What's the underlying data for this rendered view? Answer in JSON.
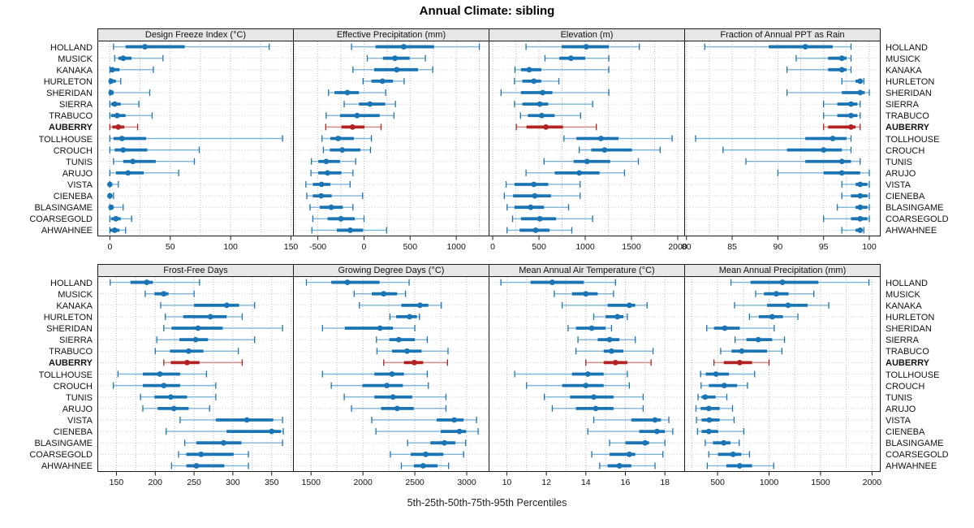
{
  "title": "Annual Climate: sibling",
  "footer": "5th-25th-50th-75th-95th Percentiles",
  "highlight_station": "AUBERRY",
  "stations": [
    "HOLLAND",
    "MUSICK",
    "KANAKA",
    "HURLETON",
    "SHERIDAN",
    "SIERRA",
    "TRABUCO",
    "AUBERRY",
    "TOLLHOUSE",
    "CROUCH",
    "TUNIS",
    "ARUJO",
    "VISTA",
    "CIENEBA",
    "BLASINGAME",
    "COARSEGOLD",
    "AHWAHNEE"
  ],
  "colors": {
    "normal": "#1b74b4",
    "normal_light": "#7fb3d7",
    "highlight": "#b22222",
    "highlight_light": "#d38b83",
    "header_bg": "#e7e7e7",
    "border": "#1a1a1a",
    "grid_vertical": "#b9b9b9",
    "grid_horizontal": "#d2d2d2",
    "tick_text": "#111111"
  },
  "percentile_labels": [
    "5th",
    "25th",
    "50th",
    "75th",
    "95th"
  ],
  "chart_data": [
    {
      "type": "dotplot",
      "title": "Design Freeze Index (°C)",
      "row": "top",
      "xlim": [
        -10,
        152
      ],
      "ticks": [
        0,
        50,
        100,
        150
      ],
      "values": [
        [
          3,
          13,
          29,
          62,
          132
        ],
        [
          4,
          7,
          11,
          18,
          44
        ],
        [
          0,
          1,
          2,
          8,
          36
        ],
        [
          0,
          0,
          1,
          5,
          9
        ],
        [
          0,
          0,
          1,
          3,
          33
        ],
        [
          0,
          1,
          4,
          9,
          24
        ],
        [
          0,
          1,
          6,
          13,
          35
        ],
        [
          0,
          2,
          7,
          12,
          23
        ],
        [
          0,
          3,
          10,
          30,
          143
        ],
        [
          0,
          4,
          11,
          31,
          74
        ],
        [
          3,
          11,
          19,
          38,
          70
        ],
        [
          0,
          5,
          15,
          28,
          57
        ],
        [
          0,
          0,
          0,
          1,
          7
        ],
        [
          0,
          0,
          0,
          1,
          3
        ],
        [
          0,
          0,
          1,
          3,
          11
        ],
        [
          0,
          1,
          5,
          9,
          18
        ],
        [
          0,
          0,
          4,
          8,
          13
        ]
      ]
    },
    {
      "type": "dotplot",
      "title": "Effective Precipitation (mm)",
      "row": "top",
      "xlim": [
        -765,
        1355
      ],
      "ticks": [
        -500,
        0,
        500,
        1000
      ],
      "values": [
        [
          -135,
          125,
          430,
          760,
          1250
        ],
        [
          35,
          205,
          335,
          495,
          665
        ],
        [
          -120,
          110,
          355,
          585,
          745
        ],
        [
          -10,
          80,
          200,
          315,
          435
        ],
        [
          -385,
          -320,
          -180,
          -55,
          235
        ],
        [
          -215,
          -55,
          65,
          230,
          340
        ],
        [
          -410,
          -260,
          -75,
          170,
          325
        ],
        [
          -415,
          -245,
          -125,
          5,
          185
        ],
        [
          -455,
          -365,
          -280,
          -110,
          80
        ],
        [
          -440,
          -370,
          -235,
          -40,
          70
        ],
        [
          -570,
          -495,
          -410,
          -260,
          -90
        ],
        [
          -575,
          -495,
          -395,
          -245,
          -120
        ],
        [
          -630,
          -555,
          -460,
          -365,
          -150
        ],
        [
          -620,
          -555,
          -465,
          -350,
          -15
        ],
        [
          -585,
          -480,
          -355,
          -230,
          -120
        ],
        [
          -555,
          -395,
          -250,
          -100,
          0
        ],
        [
          -565,
          -295,
          -150,
          -10,
          245
        ]
      ]
    },
    {
      "type": "dotplot",
      "title": "Elevation (m)",
      "row": "top",
      "xlim": [
        -40,
        2075
      ],
      "ticks": [
        0,
        500,
        1000,
        1500,
        2000
      ],
      "values": [
        [
          360,
          745,
          1010,
          1255,
          1585
        ],
        [
          565,
          720,
          845,
          1000,
          1255
        ],
        [
          240,
          305,
          395,
          525,
          1255
        ],
        [
          235,
          320,
          445,
          525,
          715
        ],
        [
          90,
          305,
          540,
          645,
          1255
        ],
        [
          235,
          320,
          510,
          600,
          1080
        ],
        [
          300,
          380,
          530,
          670,
          950
        ],
        [
          255,
          365,
          575,
          760,
          1120
        ],
        [
          770,
          905,
          1170,
          1360,
          1940
        ],
        [
          935,
          1065,
          1210,
          1505,
          1810
        ],
        [
          555,
          875,
          1020,
          1270,
          1575
        ],
        [
          360,
          670,
          935,
          1155,
          1425
        ],
        [
          145,
          235,
          445,
          600,
          945
        ],
        [
          125,
          220,
          455,
          630,
          945
        ],
        [
          155,
          235,
          410,
          555,
          820
        ],
        [
          215,
          305,
          510,
          685,
          1080
        ],
        [
          155,
          290,
          465,
          615,
          855
        ]
      ]
    },
    {
      "type": "dotplot",
      "title": "Fraction of Annual PPT as Rain",
      "row": "top",
      "xlim": [
        79.8,
        101.2
      ],
      "ticks": [
        80,
        85,
        90,
        95,
        100
      ],
      "values": [
        [
          82,
          89,
          93,
          96,
          98
        ],
        [
          92,
          95.5,
          97,
          97.5,
          98
        ],
        [
          91,
          95.5,
          97,
          97.5,
          98
        ],
        [
          97,
          98.5,
          99,
          99.2,
          99.4
        ],
        [
          91,
          97,
          99,
          99.5,
          100
        ],
        [
          95,
          96.5,
          98,
          98.7,
          99
        ],
        [
          95,
          96.5,
          98,
          98.7,
          99
        ],
        [
          95,
          95.5,
          98,
          98.5,
          99
        ],
        [
          81,
          93,
          96,
          97.5,
          98
        ],
        [
          84,
          91,
          95,
          97,
          98
        ],
        [
          86.5,
          93,
          97,
          98,
          99
        ],
        [
          90,
          95,
          97,
          99,
          100
        ],
        [
          97,
          98.5,
          99,
          99.8,
          100
        ],
        [
          97,
          98,
          99,
          99.8,
          100
        ],
        [
          96.5,
          98.5,
          99,
          99.8,
          100
        ],
        [
          95,
          98,
          99,
          99.8,
          100
        ],
        [
          97,
          98.5,
          99,
          99.1,
          99.4
        ]
      ]
    },
    {
      "type": "dotplot",
      "title": "Frost-Free Days",
      "row": "bottom",
      "xlim": [
        126,
        378
      ],
      "ticks": [
        150,
        200,
        250,
        300,
        350
      ],
      "values": [
        [
          142,
          168,
          189,
          197,
          257
        ],
        [
          187,
          199,
          211,
          217,
          250
        ],
        [
          207,
          250,
          292,
          308,
          328
        ],
        [
          213,
          236,
          271,
          292,
          312
        ],
        [
          211,
          221,
          255,
          287,
          364
        ],
        [
          202,
          231,
          252,
          268,
          328
        ],
        [
          200,
          219,
          243,
          262,
          307
        ],
        [
          211,
          220,
          241,
          257,
          312
        ],
        [
          152,
          184,
          206,
          232,
          266
        ],
        [
          146,
          184,
          211,
          232,
          278
        ],
        [
          181,
          199,
          220,
          241,
          278
        ],
        [
          184,
          203,
          224,
          243,
          270
        ],
        [
          232,
          278,
          318,
          352,
          364
        ],
        [
          214,
          292,
          350,
          362,
          365
        ],
        [
          238,
          253,
          288,
          311,
          364
        ],
        [
          230,
          240,
          259,
          301,
          320
        ],
        [
          221,
          240,
          253,
          289,
          320
        ]
      ]
    },
    {
      "type": "dotplot",
      "title": "Growing Degree Days (°C)",
      "row": "bottom",
      "xlim": [
        1330,
        3215
      ],
      "ticks": [
        1500,
        2000,
        2500,
        3000
      ],
      "values": [
        [
          1455,
          1695,
          1850,
          2160,
          2445
        ],
        [
          1915,
          2085,
          2200,
          2330,
          2410
        ],
        [
          1965,
          2370,
          2550,
          2630,
          2755
        ],
        [
          2260,
          2320,
          2450,
          2520,
          2545
        ],
        [
          1610,
          1825,
          2165,
          2290,
          2500
        ],
        [
          2130,
          2255,
          2345,
          2500,
          2620
        ],
        [
          2135,
          2280,
          2425,
          2565,
          2820
        ],
        [
          2200,
          2395,
          2495,
          2580,
          2815
        ],
        [
          1610,
          2110,
          2280,
          2395,
          2620
        ],
        [
          1695,
          1995,
          2230,
          2385,
          2630
        ],
        [
          1820,
          2110,
          2290,
          2475,
          2800
        ],
        [
          1890,
          2175,
          2330,
          2490,
          2800
        ],
        [
          2085,
          2710,
          2880,
          2970,
          3095
        ],
        [
          2125,
          2750,
          2930,
          2995,
          3110
        ],
        [
          2430,
          2650,
          2785,
          2890,
          2990
        ],
        [
          2265,
          2460,
          2605,
          2775,
          2970
        ],
        [
          2370,
          2490,
          2580,
          2720,
          2825
        ]
      ]
    },
    {
      "type": "dotplot",
      "title": "Mean Annual Air Temperature (°C)",
      "row": "bottom",
      "xlim": [
        9.1,
        19.0
      ],
      "ticks": [
        10,
        12,
        14,
        16,
        18
      ],
      "values": [
        [
          9.7,
          11.2,
          12.3,
          13.9,
          15.5
        ],
        [
          12.4,
          13.3,
          14.0,
          14.6,
          15.4
        ],
        [
          12.8,
          15.1,
          16.2,
          16.5,
          17.1
        ],
        [
          14.4,
          15.0,
          15.6,
          15.9,
          16.1
        ],
        [
          13.1,
          13.5,
          14.3,
          15.0,
          15.3
        ],
        [
          13.6,
          14.6,
          15.2,
          15.7,
          16.5
        ],
        [
          13.5,
          14.9,
          15.3,
          15.9,
          17.4
        ],
        [
          14.0,
          14.9,
          15.5,
          16.1,
          17.3
        ],
        [
          10.4,
          13.3,
          14.1,
          14.9,
          16.1
        ],
        [
          11.0,
          12.8,
          14.0,
          14.9,
          16.2
        ],
        [
          11.9,
          13.2,
          14.4,
          15.4,
          16.9
        ],
        [
          12.3,
          13.5,
          14.5,
          15.4,
          16.9
        ],
        [
          14.4,
          16.3,
          17.5,
          17.8,
          18.2
        ],
        [
          14.1,
          16.7,
          17.6,
          18.0,
          18.4
        ],
        [
          15.2,
          16.0,
          17.0,
          17.2,
          18.0
        ],
        [
          14.3,
          15.2,
          16.2,
          16.5,
          17.9
        ],
        [
          14.7,
          15.1,
          15.7,
          16.3,
          17.5
        ]
      ]
    },
    {
      "type": "dotplot",
      "title": "Mean Annual Precipitation (mm)",
      "row": "bottom",
      "xlim": [
        180,
        2080
      ],
      "ticks": [
        500,
        1000,
        1500,
        2000
      ],
      "values": [
        [
          630,
          820,
          1130,
          1480,
          1970
        ],
        [
          870,
          950,
          1070,
          1190,
          1435
        ],
        [
          665,
          980,
          1185,
          1375,
          1580
        ],
        [
          810,
          900,
          1030,
          1135,
          1280
        ],
        [
          395,
          465,
          570,
          715,
          1050
        ],
        [
          670,
          780,
          895,
          1030,
          1150
        ],
        [
          530,
          635,
          735,
          980,
          1125
        ],
        [
          465,
          560,
          715,
          835,
          1000
        ],
        [
          335,
          385,
          485,
          610,
          860
        ],
        [
          340,
          415,
          565,
          690,
          790
        ],
        [
          310,
          345,
          380,
          480,
          590
        ],
        [
          290,
          335,
          415,
          520,
          645
        ],
        [
          295,
          345,
          420,
          520,
          660
        ],
        [
          305,
          345,
          415,
          505,
          755
        ],
        [
          380,
          455,
          560,
          625,
          710
        ],
        [
          415,
          505,
          650,
          730,
          810
        ],
        [
          400,
          585,
          715,
          835,
          1045
        ]
      ]
    }
  ]
}
